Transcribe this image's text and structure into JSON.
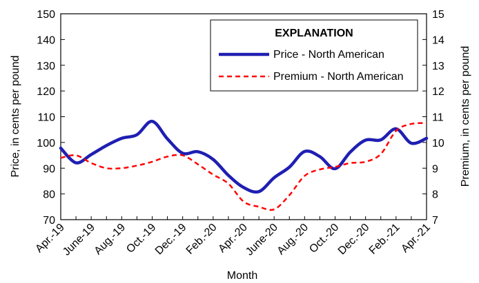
{
  "chart_data": {
    "type": "line",
    "title": "",
    "xlabel": "Month",
    "ylabel": "Price, in cents per pound",
    "y2label": "Premium, in cents per pound",
    "ylim": [
      70,
      150
    ],
    "y2lim": [
      7,
      15
    ],
    "yticks": [
      70,
      80,
      90,
      100,
      110,
      120,
      130,
      140,
      150
    ],
    "y2ticks": [
      7,
      8,
      9,
      10,
      11,
      12,
      13,
      14,
      15
    ],
    "xticks": [
      "Apr.-19",
      "June-19",
      "Aug.-19",
      "Oct.-19",
      "Dec.-19",
      "Feb.-20",
      "Apr.-20",
      "June-20",
      "Aug.-20",
      "Oct.-20",
      "Dec.-20",
      "Feb.-21",
      "Apr.-21"
    ],
    "x": [
      "Apr.-19",
      "May-19",
      "June-19",
      "July-19",
      "Aug.-19",
      "Sep.-19",
      "Oct.-19",
      "Nov.-19",
      "Dec.-19",
      "Jan.-20",
      "Feb.-20",
      "Mar.-20",
      "Apr.-20",
      "May-20",
      "June-20",
      "July-20",
      "Aug.-20",
      "Sep.-20",
      "Oct.-20",
      "Nov.-20",
      "Dec.-20",
      "Jan.-21",
      "Feb.-21",
      "Mar.-21",
      "Apr.-21"
    ],
    "grid": false,
    "legend": {
      "title": "EXPLANATION",
      "placement": "top-right"
    },
    "series": [
      {
        "name": "Price - North American",
        "axis": "left",
        "color": "#1f1fb3",
        "style": "solid",
        "values": [
          97.8,
          92.1,
          95.3,
          98.8,
          101.6,
          103.0,
          108.2,
          101.4,
          95.8,
          96.4,
          93.4,
          87.2,
          82.5,
          80.9,
          86.3,
          90.4,
          96.5,
          94.5,
          89.8,
          96.3,
          100.9,
          101.0,
          105.3,
          99.7,
          101.6
        ]
      },
      {
        "name": "Premium - North American",
        "axis": "right",
        "color": "#ff0000",
        "style": "dashed",
        "values": [
          9.4,
          9.5,
          9.2,
          9.0,
          9.0,
          9.1,
          9.25,
          9.45,
          9.5,
          9.15,
          8.75,
          8.4,
          7.7,
          7.5,
          7.4,
          7.95,
          8.7,
          8.95,
          9.05,
          9.2,
          9.25,
          9.55,
          10.45,
          10.72,
          10.75
        ]
      }
    ]
  }
}
